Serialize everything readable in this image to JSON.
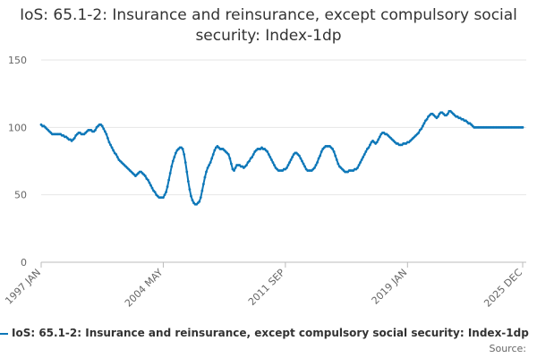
{
  "chart_data": {
    "type": "line",
    "title": "IoS: 65.1-2: Insurance and reinsurance, except compulsory social security: Index-1dp",
    "source": "Source:",
    "categories": [
      "1997 JAN",
      null,
      null,
      null,
      null,
      null,
      null,
      null,
      null,
      null,
      null,
      null,
      null,
      null,
      null,
      null,
      null,
      null,
      null,
      null,
      null,
      null,
      null,
      null,
      null,
      null,
      null,
      null,
      null,
      null,
      null,
      null,
      null,
      null,
      null,
      null,
      null,
      null,
      null,
      null,
      null,
      null,
      null,
      null,
      null,
      null,
      null,
      null,
      null,
      null,
      null,
      null,
      null,
      null,
      null,
      null,
      null,
      null,
      null,
      null,
      null,
      null,
      null,
      null,
      null,
      null,
      null,
      null,
      null,
      null,
      null,
      null,
      null,
      null,
      null,
      null,
      null,
      null,
      null,
      null,
      null,
      null,
      null,
      null,
      null,
      null,
      null,
      null,
      "2004 MAY",
      null,
      null,
      null,
      null,
      null,
      null,
      null,
      null,
      null,
      null,
      null,
      null,
      null,
      null,
      null,
      null,
      null,
      null,
      null,
      null,
      null,
      null,
      null,
      null,
      null,
      null,
      null,
      null,
      null,
      null,
      null,
      null,
      null,
      null,
      null,
      null,
      null,
      null,
      null,
      null,
      null,
      null,
      null,
      null,
      null,
      null,
      null,
      null,
      null,
      null,
      null,
      null,
      null,
      null,
      null,
      null,
      null,
      null,
      null,
      null,
      null,
      null,
      null,
      null,
      null,
      null,
      null,
      null,
      null,
      null,
      null,
      null,
      null,
      null,
      null,
      null,
      null,
      null,
      null,
      null,
      null,
      null,
      null,
      null,
      null,
      null,
      null,
      "2011 SEP",
      null,
      null,
      null,
      null,
      null,
      null,
      null,
      null,
      null,
      null,
      null,
      null,
      null,
      null,
      null,
      null,
      null,
      null,
      null,
      null,
      null,
      null,
      null,
      null,
      null,
      null,
      null,
      null,
      null,
      null,
      null,
      null,
      null,
      null,
      null,
      null,
      null,
      null,
      null,
      null,
      null,
      null,
      null,
      null,
      null,
      null,
      null,
      null,
      null,
      null,
      null,
      null,
      null,
      null,
      null,
      null,
      null,
      null,
      null,
      null,
      null,
      null,
      null,
      null,
      null,
      null,
      null,
      null,
      null,
      null,
      null,
      null,
      null,
      null,
      null,
      null,
      null,
      null,
      null,
      null,
      null,
      null,
      null,
      null,
      null,
      null,
      null,
      "2019 JAN",
      null,
      null,
      null,
      null,
      null,
      null,
      null,
      null,
      null,
      null,
      null,
      null,
      null,
      null,
      null,
      null,
      null,
      null,
      null,
      null,
      null,
      null,
      null,
      null,
      null,
      null,
      null,
      null,
      null,
      null,
      null,
      null,
      null,
      null,
      null,
      null,
      null,
      null,
      null,
      null,
      null,
      null,
      null,
      null,
      null,
      null,
      null,
      null,
      null,
      null,
      null,
      null,
      null,
      null,
      null,
      null,
      null,
      null,
      null,
      null,
      null,
      null,
      null,
      null,
      null,
      null,
      null,
      null,
      null,
      null,
      null,
      null,
      null,
      null,
      null,
      null,
      null,
      null,
      null,
      null,
      null,
      null,
      "2025 DEC"
    ],
    "series": [
      {
        "name": "IoS: 65.1-2: Insurance and reinsurance, except compulsory social security: Index-1dp",
        "color": "#0d77b8",
        "values": [
          102,
          101,
          101,
          100,
          99,
          98,
          97,
          96,
          95,
          95,
          95,
          95,
          95,
          95,
          95,
          94,
          94,
          93,
          93,
          92,
          91,
          91,
          90,
          91,
          92,
          94,
          95,
          96,
          96,
          95,
          95,
          95,
          96,
          97,
          98,
          98,
          98,
          97,
          97,
          98,
          100,
          101,
          102,
          102,
          101,
          99,
          97,
          95,
          92,
          89,
          87,
          85,
          83,
          81,
          80,
          78,
          76,
          75,
          74,
          73,
          72,
          71,
          70,
          69,
          68,
          67,
          66,
          65,
          64,
          65,
          66,
          67,
          67,
          66,
          65,
          64,
          62,
          61,
          59,
          57,
          55,
          53,
          52,
          50,
          49,
          48,
          48,
          48,
          48,
          50,
          52,
          56,
          61,
          66,
          71,
          75,
          78,
          81,
          83,
          84,
          85,
          85,
          84,
          80,
          74,
          67,
          60,
          54,
          49,
          46,
          44,
          43,
          43,
          44,
          45,
          48,
          53,
          58,
          63,
          67,
          70,
          72,
          74,
          77,
          80,
          83,
          85,
          86,
          85,
          84,
          84,
          84,
          83,
          82,
          81,
          80,
          77,
          73,
          69,
          68,
          70,
          72,
          72,
          72,
          71,
          71,
          70,
          71,
          72,
          74,
          75,
          77,
          78,
          80,
          82,
          83,
          84,
          84,
          84,
          85,
          84,
          84,
          83,
          82,
          80,
          78,
          76,
          74,
          72,
          70,
          69,
          68,
          68,
          68,
          68,
          69,
          69,
          70,
          72,
          74,
          76,
          78,
          80,
          81,
          81,
          80,
          79,
          77,
          75,
          73,
          71,
          69,
          68,
          68,
          68,
          68,
          69,
          70,
          72,
          74,
          77,
          79,
          82,
          84,
          85,
          86,
          86,
          86,
          86,
          85,
          84,
          82,
          79,
          76,
          73,
          71,
          70,
          69,
          68,
          67,
          67,
          67,
          68,
          68,
          68,
          68,
          69,
          69,
          70,
          72,
          74,
          76,
          78,
          80,
          82,
          84,
          85,
          87,
          89,
          90,
          89,
          88,
          89,
          91,
          93,
          95,
          96,
          96,
          95,
          95,
          94,
          93,
          92,
          91,
          90,
          89,
          88,
          88,
          87,
          87,
          87,
          88,
          88,
          88,
          89,
          89,
          90,
          91,
          92,
          93,
          94,
          95,
          96,
          98,
          99,
          101,
          103,
          105,
          106,
          108,
          109,
          110,
          110,
          109,
          108,
          107,
          108,
          110,
          111,
          111,
          110,
          109,
          109,
          110,
          112,
          112,
          111,
          110,
          109,
          108,
          108,
          107,
          107,
          106,
          106,
          105,
          105,
          104,
          103,
          103,
          102,
          101,
          100,
          100,
          100,
          100,
          100,
          100,
          100,
          100,
          100,
          100,
          100,
          100,
          100,
          100,
          100,
          100,
          100,
          100,
          100,
          100,
          100,
          100,
          100,
          100,
          100,
          100,
          100,
          100,
          100,
          100,
          100,
          100,
          100,
          100,
          100,
          100
        ]
      }
    ],
    "ylim": [
      0,
      150
    ],
    "yticks": [
      0,
      50,
      100,
      150
    ],
    "grid": true
  }
}
